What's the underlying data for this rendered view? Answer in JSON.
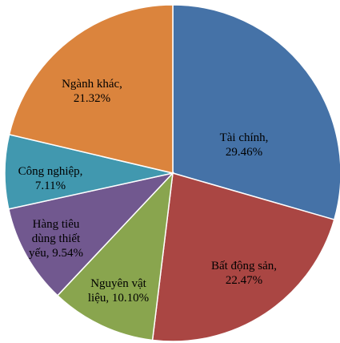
{
  "chart_data": {
    "type": "pie",
    "values": [
      29.46,
      22.47,
      10.1,
      9.54,
      7.11,
      21.32
    ],
    "value_labels": [
      "Tài chính, 29.46%",
      "Bất động sản, 22.47%",
      "Nguyên vật liệu, 10.10%",
      "Hàng tiêu dùng thiết yếu, 9.54%",
      "Công nghiệp, 7.11%",
      "Ngành khác, 21.32%"
    ],
    "colors": [
      "#4572a7",
      "#aa4643",
      "#89a54e",
      "#71588f",
      "#4198af",
      "#db843d"
    ]
  }
}
